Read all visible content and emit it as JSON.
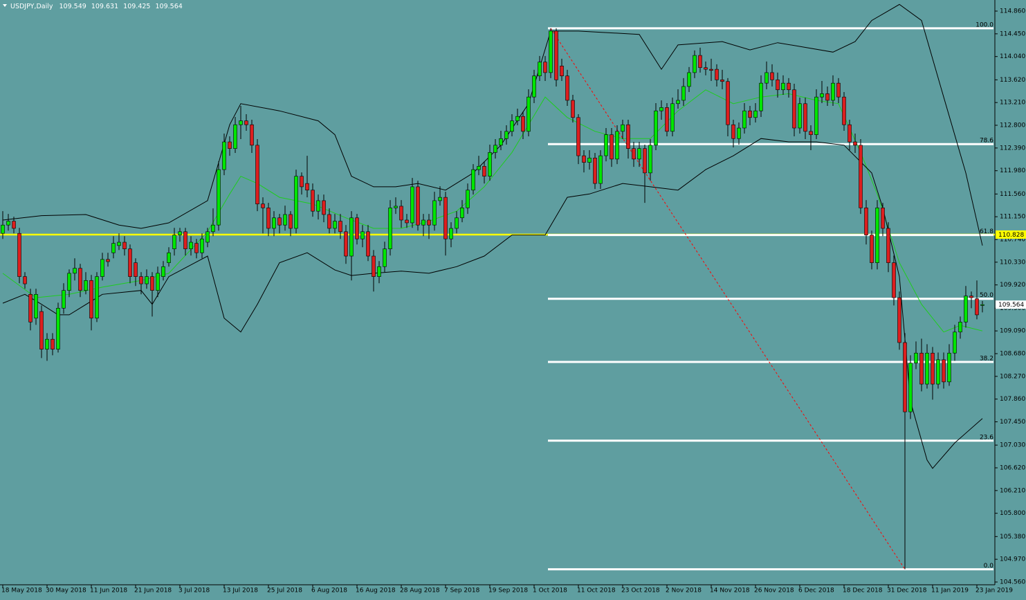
{
  "chart_data": {
    "type": "candlestick",
    "symbol": "USDJPY,Daily",
    "background": "#5f9ea0",
    "bull_color": "#00e600",
    "bear_color": "#dc1e1e",
    "xlim": [
      -0.5,
      179.25
    ],
    "ylim": [
      104.51,
      115.06
    ],
    "xticks": [
      {
        "value": 0,
        "label": "18 May 2018"
      },
      {
        "value": 8,
        "label": "30 May 2018"
      },
      {
        "value": 16,
        "label": "11 Jun 2018"
      },
      {
        "value": 24,
        "label": "21 Jun 2018"
      },
      {
        "value": 32,
        "label": "3 Jul 2018"
      },
      {
        "value": 40,
        "label": "13 Jul 2018"
      },
      {
        "value": 48,
        "label": "25 Jul 2018"
      },
      {
        "value": 56,
        "label": "6 Aug 2018"
      },
      {
        "value": 64,
        "label": "16 Aug 2018"
      },
      {
        "value": 72,
        "label": "28 Aug 2018"
      },
      {
        "value": 80,
        "label": "7 Sep 2018"
      },
      {
        "value": 88,
        "label": "19 Sep 2018"
      },
      {
        "value": 96,
        "label": "1 Oct 2018"
      },
      {
        "value": 104,
        "label": "11 Oct 2018"
      },
      {
        "value": 112,
        "label": "23 Oct 2018"
      },
      {
        "value": 120,
        "label": "2 Nov 2018"
      },
      {
        "value": 128,
        "label": "14 Nov 2018"
      },
      {
        "value": 136,
        "label": "26 Nov 2018"
      },
      {
        "value": 144,
        "label": "6 Dec 2018"
      },
      {
        "value": 152,
        "label": "18 Dec 2018"
      },
      {
        "value": 160,
        "label": "31 Dec 2018"
      },
      {
        "value": 168,
        "label": "11 Jan 2019"
      },
      {
        "value": 176,
        "label": "23 Jan 2019"
      }
    ],
    "yticks": [
      {
        "value": 114.86,
        "label": "114.860"
      },
      {
        "value": 114.45,
        "label": "114.450"
      },
      {
        "value": 114.04,
        "label": "114.040"
      },
      {
        "value": 113.62,
        "label": "113.620"
      },
      {
        "value": 113.21,
        "label": "113.210"
      },
      {
        "value": 112.8,
        "label": "112.800"
      },
      {
        "value": 112.39,
        "label": "112.390"
      },
      {
        "value": 111.98,
        "label": "111.980"
      },
      {
        "value": 111.56,
        "label": "111.560"
      },
      {
        "value": 111.15,
        "label": "111.150"
      },
      {
        "value": 110.74,
        "label": "110.740"
      },
      {
        "value": 110.33,
        "label": "110.330"
      },
      {
        "value": 109.92,
        "label": "109.920"
      },
      {
        "value": 109.5,
        "label": "109.500"
      },
      {
        "value": 109.09,
        "label": "109.090"
      },
      {
        "value": 108.68,
        "label": "108.680"
      },
      {
        "value": 108.27,
        "label": "108.270"
      },
      {
        "value": 107.86,
        "label": "107.860"
      },
      {
        "value": 107.45,
        "label": "107.450"
      },
      {
        "value": 107.03,
        "label": "107.030"
      },
      {
        "value": 106.62,
        "label": "106.620"
      },
      {
        "value": 106.21,
        "label": "106.210"
      },
      {
        "value": 105.8,
        "label": "105.800"
      },
      {
        "value": 105.38,
        "label": "105.380"
      },
      {
        "value": 104.97,
        "label": "104.970"
      },
      {
        "value": 104.56,
        "label": "104.560"
      }
    ],
    "open": [
      110.85,
      111.0,
      111.07,
      110.85,
      110.07,
      109.75,
      109.32,
      109.44,
      108.76,
      108.94,
      108.76,
      109.5,
      109.82,
      110.13,
      110.22,
      109.82,
      110.0,
      109.32,
      110.07,
      110.38,
      110.5,
      110.63,
      110.69,
      110.57,
      110.32,
      110.07,
      109.94,
      110.07,
      109.82,
      110.07,
      110.32,
      110.57,
      110.82,
      110.88,
      110.57,
      110.67,
      110.5,
      110.69,
      110.88,
      111.0,
      112.0,
      112.5,
      112.38,
      112.81,
      112.88,
      112.81,
      112.44,
      111.38,
      111.31,
      110.94,
      111.13,
      111.0,
      111.19,
      110.94,
      111.88,
      111.75,
      111.63,
      111.25,
      111.44,
      111.19,
      110.94,
      111.07,
      110.88,
      110.44,
      111.13,
      110.75,
      110.88,
      110.44,
      110.07,
      110.25,
      110.57,
      111.31,
      111.34,
      111.09,
      111.04,
      111.69,
      111.0,
      111.09,
      111.0,
      111.44,
      111.5,
      110.75,
      110.94,
      111.13,
      111.31,
      111.63,
      112.0,
      112.06,
      111.88,
      112.31,
      112.44,
      112.56,
      112.69,
      112.88,
      112.96,
      112.69,
      113.31,
      113.69,
      113.94,
      113.75,
      114.5,
      113.87,
      113.69,
      113.25,
      112.94,
      112.25,
      112.13,
      112.21,
      111.75,
      112.25,
      112.63,
      112.19,
      112.69,
      112.81,
      112.38,
      112.19,
      112.38,
      111.94,
      112.44,
      113.06,
      113.12,
      112.69,
      113.19,
      113.25,
      113.5,
      113.75,
      114.06,
      113.84,
      113.81,
      113.81,
      113.62,
      113.59,
      112.81,
      112.56,
      112.75,
      113.06,
      112.94,
      113.06,
      113.56,
      113.75,
      113.62,
      113.44,
      113.56,
      113.44,
      112.75,
      113.19,
      112.69,
      112.63,
      113.31,
      113.37,
      113.25,
      113.56,
      113.31,
      112.81,
      112.5,
      112.44,
      111.31,
      110.82,
      110.32,
      111.31,
      110.94,
      110.32,
      109.69,
      108.88,
      107.63,
      108.51,
      108.69,
      108.13,
      108.69,
      108.13,
      108.57,
      108.17,
      108.69,
      109.07,
      109.25,
      109.72,
      109.67,
      109.549
    ],
    "high": [
      111.25,
      111.2,
      111.15,
      110.95,
      110.15,
      109.85,
      109.85,
      109.55,
      109.05,
      109.05,
      109.6,
      109.95,
      110.2,
      110.4,
      110.3,
      110.15,
      110.1,
      110.15,
      110.5,
      110.5,
      110.8,
      110.85,
      110.8,
      110.65,
      110.4,
      110.15,
      110.2,
      110.15,
      110.25,
      110.35,
      110.6,
      110.95,
      110.95,
      110.95,
      110.8,
      110.75,
      110.85,
      110.95,
      111.3,
      112.15,
      112.65,
      112.6,
      112.95,
      113.15,
      113.0,
      112.9,
      112.55,
      111.5,
      111.4,
      111.25,
      111.2,
      111.35,
      111.25,
      112.0,
      111.95,
      112.25,
      111.75,
      111.55,
      111.55,
      111.3,
      111.2,
      111.2,
      111.0,
      111.25,
      111.2,
      111.0,
      111.0,
      110.55,
      110.35,
      110.7,
      111.45,
      111.5,
      111.45,
      111.2,
      111.85,
      111.8,
      111.2,
      111.2,
      111.6,
      111.7,
      111.6,
      111.05,
      111.25,
      111.45,
      111.75,
      112.1,
      112.25,
      112.15,
      112.45,
      112.55,
      112.7,
      112.8,
      113.0,
      113.1,
      113.05,
      113.45,
      113.8,
      114.05,
      114.05,
      114.55,
      114.55,
      114.0,
      113.8,
      113.35,
      113.0,
      112.35,
      112.35,
      112.3,
      112.35,
      112.75,
      112.75,
      112.8,
      112.9,
      112.9,
      112.5,
      112.5,
      112.45,
      112.55,
      113.2,
      113.25,
      113.2,
      113.3,
      113.45,
      113.65,
      113.85,
      114.15,
      114.2,
      113.95,
      114.0,
      113.9,
      113.8,
      113.65,
      112.9,
      112.85,
      113.2,
      113.15,
      113.2,
      113.7,
      113.95,
      113.9,
      113.75,
      113.7,
      113.65,
      113.55,
      113.3,
      113.3,
      112.8,
      113.45,
      113.6,
      113.5,
      113.7,
      113.65,
      113.4,
      112.9,
      112.65,
      112.55,
      111.45,
      110.9,
      111.45,
      111.4,
      111.05,
      110.45,
      109.8,
      109.05,
      108.65,
      108.9,
      108.95,
      108.85,
      108.8,
      108.7,
      108.7,
      108.85,
      109.2,
      109.35,
      109.9,
      109.8,
      110.0,
      109.631
    ],
    "low": [
      110.75,
      110.9,
      110.85,
      109.95,
      109.85,
      109.1,
      109.2,
      108.6,
      108.55,
      108.65,
      108.7,
      109.4,
      109.7,
      110.0,
      109.7,
      109.75,
      109.1,
      109.25,
      110.0,
      110.25,
      110.4,
      110.55,
      110.45,
      109.95,
      109.9,
      109.75,
      109.85,
      109.35,
      109.7,
      110.0,
      110.25,
      110.45,
      110.7,
      110.45,
      110.45,
      110.4,
      110.4,
      110.6,
      110.8,
      110.9,
      111.9,
      112.25,
      112.3,
      112.55,
      112.7,
      112.3,
      111.25,
      110.85,
      110.8,
      110.8,
      110.85,
      110.9,
      110.8,
      110.85,
      111.55,
      111.5,
      111.15,
      111.1,
      111.05,
      110.85,
      110.85,
      110.75,
      110.3,
      110.0,
      110.65,
      110.6,
      110.35,
      109.8,
      109.95,
      110.15,
      110.45,
      111.2,
      110.95,
      110.95,
      110.95,
      110.9,
      110.8,
      110.75,
      110.9,
      111.35,
      110.45,
      110.6,
      110.85,
      111.05,
      111.2,
      111.55,
      111.9,
      111.75,
      111.8,
      112.2,
      112.35,
      112.45,
      112.6,
      112.8,
      112.55,
      112.6,
      113.2,
      113.6,
      113.6,
      113.65,
      113.5,
      113.6,
      113.15,
      112.85,
      112.1,
      111.95,
      112.0,
      111.65,
      111.65,
      112.15,
      112.05,
      112.1,
      112.55,
      112.2,
      112.05,
      112.05,
      111.4,
      111.8,
      112.35,
      112.9,
      112.6,
      112.6,
      113.1,
      113.15,
      113.4,
      113.65,
      113.75,
      113.7,
      113.6,
      113.5,
      113.45,
      112.6,
      112.4,
      112.45,
      112.65,
      112.8,
      112.85,
      112.95,
      113.45,
      113.5,
      113.3,
      113.35,
      113.3,
      112.6,
      112.65,
      112.55,
      112.35,
      112.55,
      113.2,
      113.15,
      113.15,
      113.2,
      112.7,
      112.35,
      112.3,
      111.2,
      110.65,
      110.2,
      110.2,
      110.8,
      110.15,
      109.55,
      108.75,
      104.79,
      107.5,
      108.4,
      108.0,
      108.05,
      107.85,
      108.05,
      108.05,
      108.1,
      108.55,
      108.95,
      109.15,
      109.5,
      109.3,
      109.425
    ],
    "close": [
      111.0,
      111.07,
      110.94,
      110.07,
      109.94,
      109.25,
      109.75,
      108.76,
      108.94,
      108.76,
      109.5,
      109.82,
      110.13,
      110.22,
      109.82,
      110.0,
      109.32,
      110.07,
      110.38,
      110.34,
      110.67,
      110.69,
      110.57,
      110.07,
      110.07,
      109.94,
      110.07,
      109.82,
      110.13,
      110.25,
      110.5,
      110.82,
      110.88,
      110.57,
      110.69,
      110.5,
      110.75,
      110.88,
      111.0,
      112.0,
      112.5,
      112.38,
      112.81,
      112.88,
      112.81,
      112.44,
      111.38,
      111.31,
      110.94,
      111.13,
      111.0,
      111.19,
      110.94,
      111.88,
      111.69,
      111.63,
      111.25,
      111.44,
      111.19,
      110.94,
      111.07,
      110.88,
      110.44,
      111.13,
      110.75,
      110.88,
      110.44,
      110.07,
      110.25,
      110.57,
      111.31,
      111.34,
      111.09,
      111.04,
      111.69,
      111.0,
      111.09,
      111.0,
      111.44,
      111.5,
      110.75,
      110.94,
      111.13,
      111.31,
      111.63,
      112.0,
      112.06,
      111.88,
      112.31,
      112.44,
      112.56,
      112.69,
      112.88,
      112.96,
      112.69,
      113.31,
      113.69,
      113.94,
      113.75,
      114.5,
      113.62,
      113.69,
      113.25,
      112.94,
      112.25,
      112.13,
      112.21,
      111.75,
      112.25,
      112.63,
      112.19,
      112.69,
      112.81,
      112.38,
      112.19,
      112.38,
      111.94,
      112.44,
      113.06,
      113.12,
      112.69,
      113.19,
      113.25,
      113.5,
      113.75,
      114.06,
      113.84,
      113.81,
      113.79,
      113.62,
      113.59,
      112.81,
      112.56,
      112.75,
      113.06,
      112.94,
      113.06,
      113.56,
      113.75,
      113.62,
      113.44,
      113.56,
      113.44,
      112.75,
      113.19,
      112.69,
      112.63,
      113.31,
      113.37,
      113.25,
      113.56,
      113.31,
      112.81,
      112.5,
      112.44,
      111.31,
      110.82,
      110.32,
      111.31,
      110.94,
      110.32,
      109.69,
      108.88,
      107.63,
      108.51,
      108.69,
      108.13,
      108.69,
      108.13,
      108.57,
      108.17,
      108.69,
      109.07,
      109.25,
      109.72,
      109.69,
      109.38,
      109.564
    ],
    "bands": [
      {
        "color": "#000000",
        "x": [
          0,
          7,
          15,
          21,
          25,
          30,
          37,
          41,
          43,
          50,
          57,
          60,
          63,
          67,
          71,
          75,
          80,
          85,
          90,
          95,
          99,
          104,
          115,
          119,
          122,
          130,
          135,
          140,
          150,
          154,
          157,
          162,
          166,
          170,
          174,
          177
        ],
        "values": [
          111.09,
          111.17,
          111.19,
          111.0,
          110.94,
          111.04,
          111.44,
          112.81,
          113.19,
          113.06,
          112.88,
          112.63,
          111.88,
          111.69,
          111.69,
          111.75,
          111.63,
          111.94,
          112.44,
          113.19,
          114.5,
          114.5,
          114.44,
          113.81,
          114.25,
          114.31,
          114.16,
          114.29,
          114.12,
          114.31,
          114.69,
          114.98,
          114.69,
          113.31,
          111.94,
          110.63
        ]
      },
      {
        "color": "#1fcc1f",
        "x": [
          0,
          6,
          12,
          18,
          25,
          30,
          37,
          41,
          43,
          46,
          50,
          56,
          62,
          67,
          72,
          77,
          82,
          87,
          92,
          98,
          102,
          107,
          112,
          117,
          122,
          127,
          132,
          137,
          142,
          147,
          151,
          155,
          158,
          162,
          166,
          170,
          173,
          177
        ],
        "values": [
          110.13,
          109.69,
          109.75,
          109.88,
          110.0,
          110.13,
          110.88,
          111.56,
          111.88,
          111.75,
          111.5,
          111.38,
          111.13,
          110.94,
          110.94,
          111.07,
          111.25,
          111.69,
          112.31,
          113.31,
          112.94,
          112.69,
          112.56,
          112.56,
          113.06,
          113.44,
          113.19,
          113.31,
          113.37,
          113.25,
          113.19,
          112.31,
          111.56,
          110.32,
          109.57,
          109.07,
          109.19,
          109.09
        ]
      },
      {
        "color": "#000000",
        "x": [
          0,
          4,
          7,
          10,
          12,
          18,
          25,
          27,
          30,
          37,
          40,
          43,
          46,
          50,
          55,
          60,
          63,
          67,
          72,
          77,
          82,
          87,
          92,
          98,
          102,
          106,
          112,
          117,
          122,
          127,
          132,
          137,
          142,
          147,
          152,
          157,
          159,
          162,
          164,
          167,
          168,
          172,
          177
        ],
        "values": [
          109.59,
          109.75,
          109.57,
          109.38,
          109.38,
          109.75,
          109.82,
          109.57,
          110.07,
          110.44,
          109.32,
          109.07,
          109.57,
          110.32,
          110.5,
          110.19,
          110.09,
          110.13,
          110.17,
          110.13,
          110.25,
          110.44,
          110.82,
          110.82,
          111.5,
          111.56,
          111.75,
          111.69,
          111.63,
          112.0,
          112.25,
          112.56,
          112.5,
          112.5,
          112.44,
          111.94,
          111.31,
          110.07,
          107.82,
          106.76,
          106.61,
          107.07,
          107.51
        ]
      }
    ],
    "hline": {
      "value": 110.828,
      "color": "#ffff00"
    },
    "fibonacci": {
      "x": [
        99,
        163
      ],
      "color": "#ffffff",
      "trend_color": "#ff0000",
      "levels": [
        {
          "label": "100.0",
          "value": 114.55
        },
        {
          "label": "78.6",
          "value": 112.46
        },
        {
          "label": "61.8",
          "value": 110.82
        },
        {
          "label": "50.0",
          "value": 109.67
        },
        {
          "label": "38.2",
          "value": 108.53
        },
        {
          "label": "23.6",
          "value": 107.11
        },
        {
          "label": "0.0",
          "value": 104.79
        }
      ]
    }
  }
}
